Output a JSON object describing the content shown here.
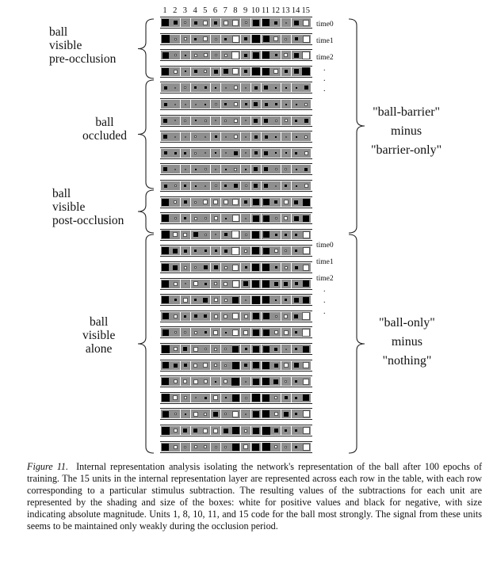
{
  "figure": {
    "column_numbers": [
      "1",
      "2",
      "3",
      "4",
      "5",
      "6",
      "7",
      "8",
      "9",
      "10",
      "11",
      "12",
      "13",
      "14",
      "15"
    ],
    "left_labels": [
      {
        "lines": [
          "ball",
          "visible",
          "pre-occlusion"
        ]
      },
      {
        "lines": [
          "ball",
          "occluded"
        ]
      },
      {
        "lines": [
          "ball",
          "visible",
          "post-occlusion"
        ]
      },
      {
        "lines": [
          "ball",
          "visible",
          "alone"
        ]
      }
    ],
    "right_labels": [
      {
        "lines": [
          "\"ball-barrier\"",
          "minus",
          "\"barrier-only\""
        ]
      },
      {
        "lines": [
          "\"ball-only\"",
          "minus",
          "\"nothing\""
        ]
      }
    ],
    "time_labels_top": [
      "time0",
      "time1",
      "time2"
    ],
    "time_labels_bottom": [
      "time0",
      "time1",
      "time2"
    ],
    "dots": ".",
    "colors": {
      "cell_background": "#8f8f8f",
      "positive": "#ffffff",
      "negative": "#000000"
    }
  },
  "caption": {
    "lead": "Figure 11.",
    "text": "Internal representation analysis isolating the network's representation of the ball after 100 epochs of training. The 15 units in the internal representation layer are represented across each row in the table, with each row corresponding to a particular stimulus subtraction. The resulting values of the subtractions for each unit are represented by the shading and size of the boxes: white for positive values and black for negative, with size indicating absolute magnitude. Units 1, 8, 10, 11, and 15 code for the ball most strongly. The signal from these units seems to be maintained only weakly during the occlusion period."
  }
}
